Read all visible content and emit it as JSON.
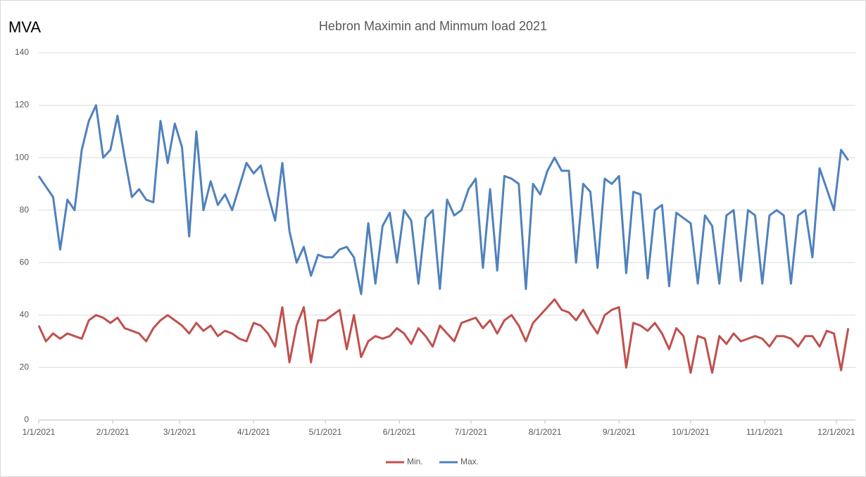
{
  "chart_data": {
    "type": "line",
    "title": "Hebron Maximin and Minmum load 2021",
    "y_label": "MVA",
    "x": [
      "1/1/2021",
      "1/4/2021",
      "1/7/2021",
      "1/10/2021",
      "1/13/2021",
      "1/16/2021",
      "1/19/2021",
      "1/22/2021",
      "1/25/2021",
      "1/28/2021",
      "1/31/2021",
      "2/3/2021",
      "2/6/2021",
      "2/9/2021",
      "2/12/2021",
      "2/15/2021",
      "2/18/2021",
      "2/21/2021",
      "2/24/2021",
      "2/27/2021",
      "3/2/2021",
      "3/5/2021",
      "3/8/2021",
      "3/11/2021",
      "3/14/2021",
      "3/17/2021",
      "3/20/2021",
      "3/23/2021",
      "3/26/2021",
      "3/29/2021",
      "4/1/2021",
      "4/4/2021",
      "4/7/2021",
      "4/10/2021",
      "4/13/2021",
      "4/16/2021",
      "4/19/2021",
      "4/22/2021",
      "4/25/2021",
      "4/28/2021",
      "5/1/2021",
      "5/4/2021",
      "5/7/2021",
      "5/10/2021",
      "5/13/2021",
      "5/16/2021",
      "5/19/2021",
      "5/22/2021",
      "5/25/2021",
      "5/28/2021",
      "5/31/2021",
      "6/3/2021",
      "6/6/2021",
      "6/9/2021",
      "6/12/2021",
      "6/15/2021",
      "6/18/2021",
      "6/21/2021",
      "6/24/2021",
      "6/27/2021",
      "6/30/2021",
      "7/3/2021",
      "7/6/2021",
      "7/9/2021",
      "7/12/2021",
      "7/15/2021",
      "7/18/2021",
      "7/21/2021",
      "7/24/2021",
      "7/27/2021",
      "7/30/2021",
      "8/2/2021",
      "8/5/2021",
      "8/8/2021",
      "8/11/2021",
      "8/14/2021",
      "8/17/2021",
      "8/20/2021",
      "8/23/2021",
      "8/26/2021",
      "8/29/2021",
      "9/1/2021",
      "9/4/2021",
      "9/7/2021",
      "9/10/2021",
      "9/13/2021",
      "9/16/2021",
      "9/19/2021",
      "9/22/2021",
      "9/25/2021",
      "9/28/2021",
      "10/1/2021",
      "10/4/2021",
      "10/7/2021",
      "10/10/2021",
      "10/13/2021",
      "10/16/2021",
      "10/19/2021",
      "10/22/2021",
      "10/25/2021",
      "10/28/2021",
      "10/31/2021",
      "11/3/2021",
      "11/6/2021",
      "11/9/2021",
      "11/12/2021",
      "11/15/2021",
      "11/18/2021",
      "11/21/2021",
      "11/24/2021",
      "11/27/2021",
      "11/30/2021",
      "12/3/2021",
      "12/6/2021"
    ],
    "series": [
      {
        "name": "Min.",
        "color": "#c0504d",
        "values": [
          36,
          30,
          33,
          31,
          33,
          32,
          31,
          38,
          40,
          39,
          37,
          39,
          35,
          34,
          33,
          30,
          35,
          38,
          40,
          38,
          36,
          33,
          37,
          34,
          36,
          32,
          34,
          33,
          31,
          30,
          37,
          36,
          33,
          28,
          43,
          22,
          36,
          43,
          22,
          38,
          38,
          40,
          42,
          27,
          40,
          24,
          30,
          32,
          31,
          32,
          35,
          33,
          29,
          35,
          32,
          28,
          36,
          33,
          30,
          37,
          38,
          39,
          35,
          38,
          33,
          38,
          40,
          36,
          30,
          37,
          40,
          43,
          46,
          42,
          41,
          38,
          42,
          37,
          33,
          40,
          42,
          43,
          20,
          37,
          36,
          34,
          37,
          33,
          27,
          35,
          32,
          18,
          32,
          31,
          18,
          32,
          29,
          33,
          30,
          31,
          32,
          31,
          28,
          32,
          32,
          31,
          28,
          32,
          32,
          28,
          34,
          33,
          19,
          35
        ]
      },
      {
        "name": "Max.",
        "color": "#4f81bd",
        "values": [
          93,
          89,
          85,
          65,
          84,
          80,
          103,
          114,
          120,
          100,
          103,
          116,
          100,
          85,
          88,
          84,
          83,
          114,
          98,
          113,
          104,
          70,
          110,
          80,
          91,
          82,
          86,
          80,
          89,
          98,
          94,
          97,
          86,
          76,
          98,
          72,
          60,
          66,
          55,
          63,
          62,
          62,
          65,
          66,
          62,
          48,
          75,
          52,
          74,
          79,
          60,
          80,
          76,
          52,
          77,
          80,
          50,
          84,
          78,
          80,
          88,
          92,
          58,
          88,
          57,
          93,
          92,
          90,
          50,
          90,
          86,
          95,
          100,
          95,
          95,
          60,
          90,
          87,
          58,
          92,
          90,
          93,
          56,
          87,
          86,
          54,
          80,
          82,
          51,
          79,
          77,
          75,
          52,
          78,
          74,
          52,
          78,
          80,
          53,
          80,
          78,
          52,
          78,
          80,
          78,
          52,
          78,
          80,
          62,
          96,
          88,
          80,
          103,
          99
        ]
      }
    ],
    "xlim": [
      "1/1/2021",
      "12/9/2021"
    ],
    "xticks": [
      "1/1/2021",
      "2/1/2021",
      "3/1/2021",
      "4/1/2021",
      "5/1/2021",
      "6/1/2021",
      "7/1/2021",
      "8/1/2021",
      "9/1/2021",
      "10/1/2021",
      "11/1/2021",
      "12/1/2021"
    ],
    "ylim": [
      0,
      140
    ],
    "yticks": [
      0,
      20,
      40,
      60,
      80,
      100,
      120,
      140
    ],
    "grid": true,
    "legend": "bottom"
  }
}
